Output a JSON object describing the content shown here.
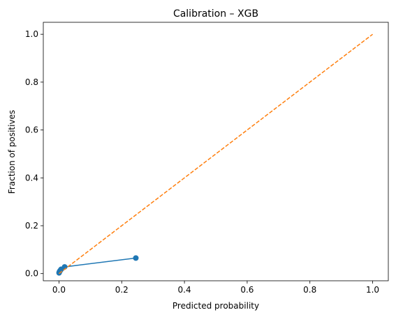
{
  "chart_data": {
    "type": "line",
    "title": "Calibration – XGB",
    "xlabel": "Predicted probability",
    "ylabel": "Fraction of positives",
    "xlim": [
      -0.05,
      1.05
    ],
    "ylim": [
      -0.03,
      1.05
    ],
    "xticks": [
      0.0,
      0.2,
      0.4,
      0.6,
      0.8,
      1.0
    ],
    "yticks": [
      0.0,
      0.2,
      0.4,
      0.6,
      0.8,
      1.0
    ],
    "xtick_labels": [
      "0.0",
      "0.2",
      "0.4",
      "0.6",
      "0.8",
      "1.0"
    ],
    "ytick_labels": [
      "0.0",
      "0.2",
      "0.4",
      "0.6",
      "0.8",
      "1.0"
    ],
    "grid": false,
    "series": [
      {
        "style": "solid-markers",
        "color": "#1f77b4",
        "x": [
          0.0003,
          0.001,
          0.002,
          0.004,
          0.007,
          0.018,
          0.245
        ],
        "y": [
          0.003,
          0.006,
          0.009,
          0.013,
          0.018,
          0.028,
          0.065
        ]
      },
      {
        "style": "dashed",
        "color": "#ff7f0e",
        "x": [
          0.0,
          1.0
        ],
        "y": [
          0.0,
          1.0
        ]
      }
    ]
  }
}
